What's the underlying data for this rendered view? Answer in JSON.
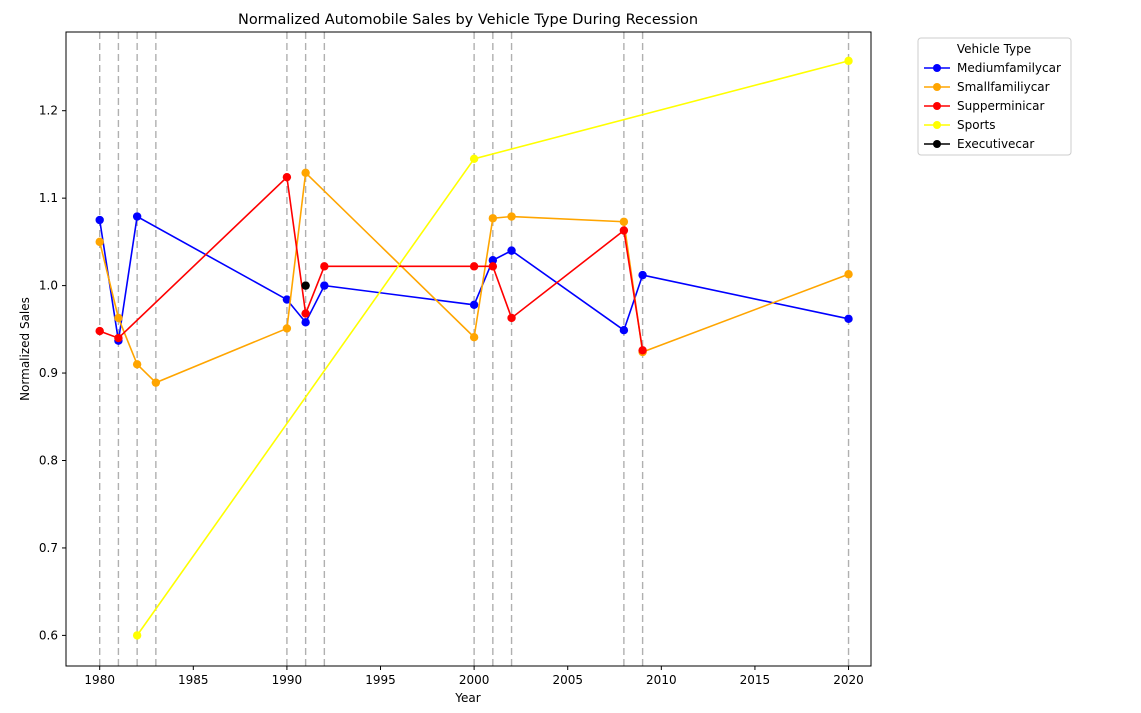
{
  "chart_data": {
    "type": "line",
    "title": "Normalized Automobile Sales by Vehicle Type During Recession",
    "xlabel": "Year",
    "ylabel": "Normalized Sales",
    "xlim": [
      1978.2,
      2021.2
    ],
    "ylim": [
      0.565,
      1.29
    ],
    "x_ticks": [
      1980,
      1985,
      1990,
      1995,
      2000,
      2005,
      2010,
      2015,
      2020
    ],
    "y_ticks": [
      0.6,
      0.7,
      0.8,
      0.9,
      1.0,
      1.1,
      1.2
    ],
    "x_tick_labels": [
      "1980",
      "1985",
      "1990",
      "1995",
      "2000",
      "2005",
      "2010",
      "2015",
      "2020"
    ],
    "y_tick_labels": [
      "0.6",
      "0.7",
      "0.8",
      "0.9",
      "1.0",
      "1.1",
      "1.2"
    ],
    "recession_years": [
      1980,
      1981,
      1982,
      1983,
      1990,
      1991,
      1992,
      2000,
      2001,
      2002,
      2008,
      2009,
      2020
    ],
    "grid": false,
    "legend": {
      "title": "Vehicle Type",
      "placement": "outside-top-right"
    },
    "series": [
      {
        "name": "Mediumfamilycar",
        "color": "#0000ff",
        "points": [
          [
            1980,
            1.075
          ],
          [
            1981,
            0.937
          ],
          [
            1982,
            1.079
          ],
          [
            1990,
            0.984
          ],
          [
            1991,
            0.958
          ],
          [
            1992,
            1.0
          ],
          [
            2000,
            0.978
          ],
          [
            2001,
            1.029
          ],
          [
            2002,
            1.04
          ],
          [
            2008,
            0.949
          ],
          [
            2009,
            1.012
          ],
          [
            2020,
            0.962
          ]
        ]
      },
      {
        "name": "Smallfamiliycar",
        "color": "#ffa500",
        "points": [
          [
            1980,
            1.05
          ],
          [
            1981,
            0.963
          ],
          [
            1982,
            0.91
          ],
          [
            1983,
            0.889
          ],
          [
            1990,
            0.951
          ],
          [
            1991,
            1.129
          ],
          [
            2000,
            0.941
          ],
          [
            2001,
            1.077
          ],
          [
            2002,
            1.079
          ],
          [
            2008,
            1.073
          ],
          [
            2009,
            0.924
          ],
          [
            2020,
            1.013
          ]
        ]
      },
      {
        "name": "Supperminicar",
        "color": "#ff0000",
        "points": [
          [
            1980,
            0.948
          ],
          [
            1981,
            0.94
          ],
          [
            1990,
            1.124
          ],
          [
            1991,
            0.968
          ],
          [
            1992,
            1.022
          ],
          [
            2000,
            1.022
          ],
          [
            2001,
            1.022
          ],
          [
            2002,
            0.963
          ],
          [
            2008,
            1.063
          ],
          [
            2009,
            0.926
          ]
        ]
      },
      {
        "name": "Sports",
        "color": "#ffff00",
        "points": [
          [
            1982,
            0.6
          ],
          [
            2000,
            1.145
          ],
          [
            2020,
            1.257
          ]
        ]
      },
      {
        "name": "Executivecar",
        "color": "#000000",
        "points": [
          [
            1991,
            1.0
          ]
        ]
      }
    ]
  }
}
